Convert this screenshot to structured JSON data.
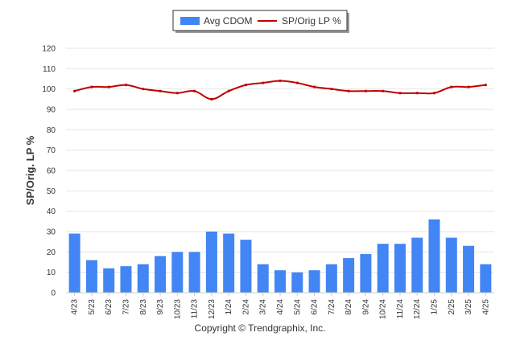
{
  "chart_data": {
    "type": "bar",
    "categories": [
      "4/23",
      "5/23",
      "6/23",
      "7/23",
      "8/23",
      "9/23",
      "10/23",
      "11/23",
      "12/23",
      "1/24",
      "2/24",
      "3/24",
      "4/24",
      "5/24",
      "6/24",
      "7/24",
      "8/24",
      "9/24",
      "10/24",
      "11/24",
      "12/24",
      "1/25",
      "2/25",
      "3/25",
      "4/25"
    ],
    "series": [
      {
        "name": "Avg CDOM",
        "type": "bar",
        "color": "#4285f4",
        "values": [
          29,
          16,
          12,
          13,
          14,
          18,
          20,
          20,
          30,
          29,
          26,
          14,
          11,
          10,
          11,
          14,
          17,
          19,
          24,
          24,
          27,
          36,
          27,
          23,
          14
        ]
      },
      {
        "name": "SP/Orig LP %",
        "type": "line",
        "color": "#c00000",
        "values": [
          99,
          101,
          101,
          102,
          100,
          99,
          98,
          99,
          95,
          99,
          102,
          103,
          104,
          103,
          101,
          100,
          99,
          99,
          99,
          98,
          98,
          98,
          101,
          101,
          102
        ]
      }
    ],
    "ylabel": "SP/Orig. LP %",
    "ylim": [
      0,
      120
    ],
    "yticks": [
      0,
      10,
      20,
      30,
      40,
      50,
      60,
      70,
      80,
      90,
      100,
      110,
      120
    ],
    "grid": true,
    "legend": "top-center"
  },
  "footer": "Copyright © Trendgraphix, Inc."
}
